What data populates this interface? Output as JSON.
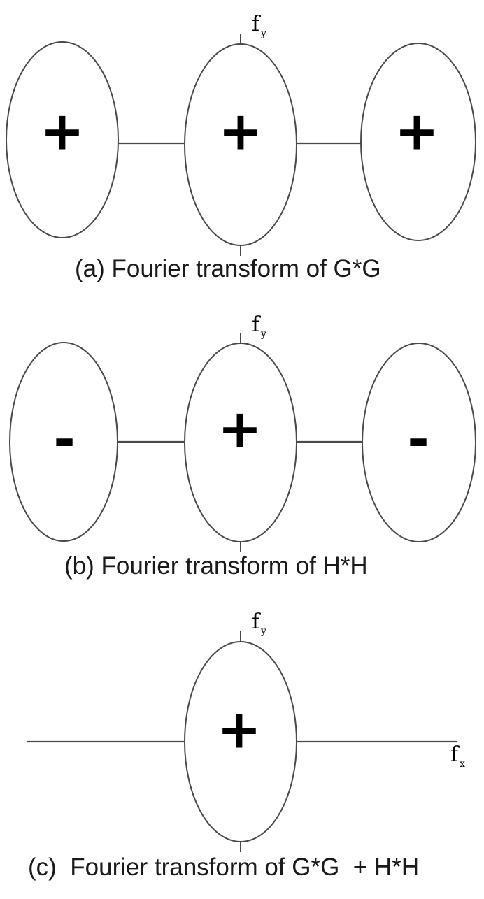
{
  "panels": [
    {
      "caption": "(a) Fourier transform of G*G",
      "axis_label": "f",
      "axis_sub": "y",
      "signs": {
        "left": "+",
        "center": "+",
        "right": "+"
      }
    },
    {
      "caption": "(b) Fourier transform of H*H",
      "axis_label": "f",
      "axis_sub": "y",
      "signs": {
        "left": "-",
        "center": "+",
        "right": "-"
      }
    },
    {
      "caption": "(c)  Fourier transform of G*G  + H*H",
      "axis_label": "f",
      "axis_sub": "y",
      "x_axis_label": "f",
      "x_axis_sub": "x",
      "signs": {
        "center": "+"
      }
    }
  ]
}
